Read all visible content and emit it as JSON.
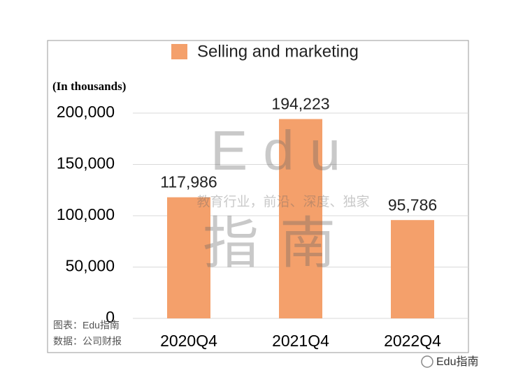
{
  "chart_data": {
    "type": "bar",
    "y_label": "(In thousands)",
    "categories": [
      "2020Q4",
      "2021Q4",
      "2022Q4"
    ],
    "series": [
      {
        "name": "Selling and marketing",
        "color": "#f4a06b",
        "values": [
          117986,
          194223,
          95786
        ],
        "value_labels": [
          "117,986",
          "194,223",
          "95,786"
        ]
      }
    ],
    "ylim": [
      0,
      200000
    ],
    "yticks": [
      0,
      {
        "value": 50000,
        "label": "50,000"
      },
      {
        "value": 100000,
        "label": "100,000"
      },
      {
        "value": 150000,
        "label": "150,000"
      },
      {
        "value": 200000,
        "label": "200,000"
      }
    ],
    "grid": true,
    "legend": "top",
    "notes": [
      "图表：Edu指南",
      "数据：公司财报"
    ],
    "watermark": {
      "logo": "Edu",
      "name": "指南",
      "slogan": "教育行业，前沿、深度、独家"
    },
    "brand": "Edu指南"
  }
}
